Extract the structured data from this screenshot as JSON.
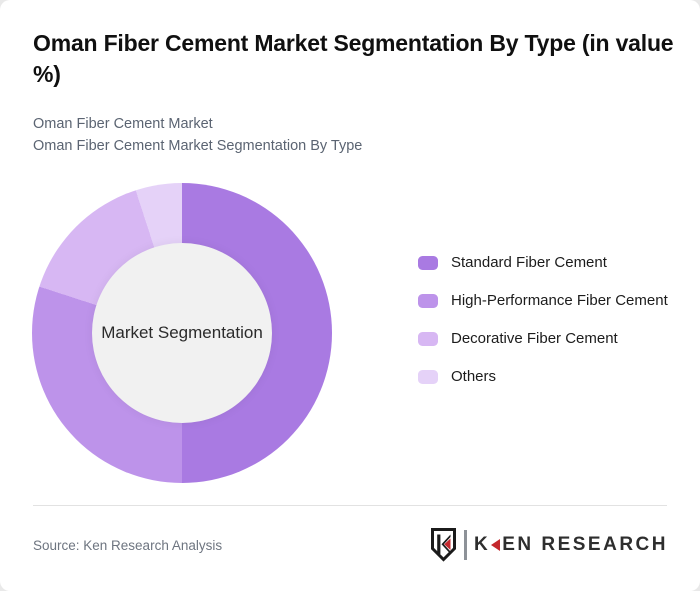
{
  "header": {
    "title": "Oman Fiber Cement Market Segmentation By Type (in value %)",
    "subtitle1": "Oman Fiber Cement Market",
    "subtitle2": "Oman Fiber Cement Market Segmentation By Type"
  },
  "chart_data": {
    "type": "pie",
    "subtype": "donut",
    "title": "Oman Fiber Cement Market Segmentation By Type (in value %)",
    "center_label": "Market Segmentation",
    "categories": [
      "Standard Fiber Cement",
      "High-Performance Fiber Cement",
      "Decorative Fiber Cement",
      "Others"
    ],
    "values": [
      50,
      30,
      15,
      5
    ],
    "unit": "percent of market value",
    "colors": [
      "#a97ae2",
      "#bd93ea",
      "#d7b7f3",
      "#e5d2f8"
    ],
    "start_angle_deg": 0,
    "direction": "clockwise",
    "inner_radius_ratio": 0.6,
    "hole_color": "#f1f1f1",
    "legend_position": "right",
    "data_labels": "none"
  },
  "footer": {
    "source": "Source: Ken Research Analysis",
    "logo_text_k": "K",
    "logo_text_rest": "EN RESEARCH"
  }
}
